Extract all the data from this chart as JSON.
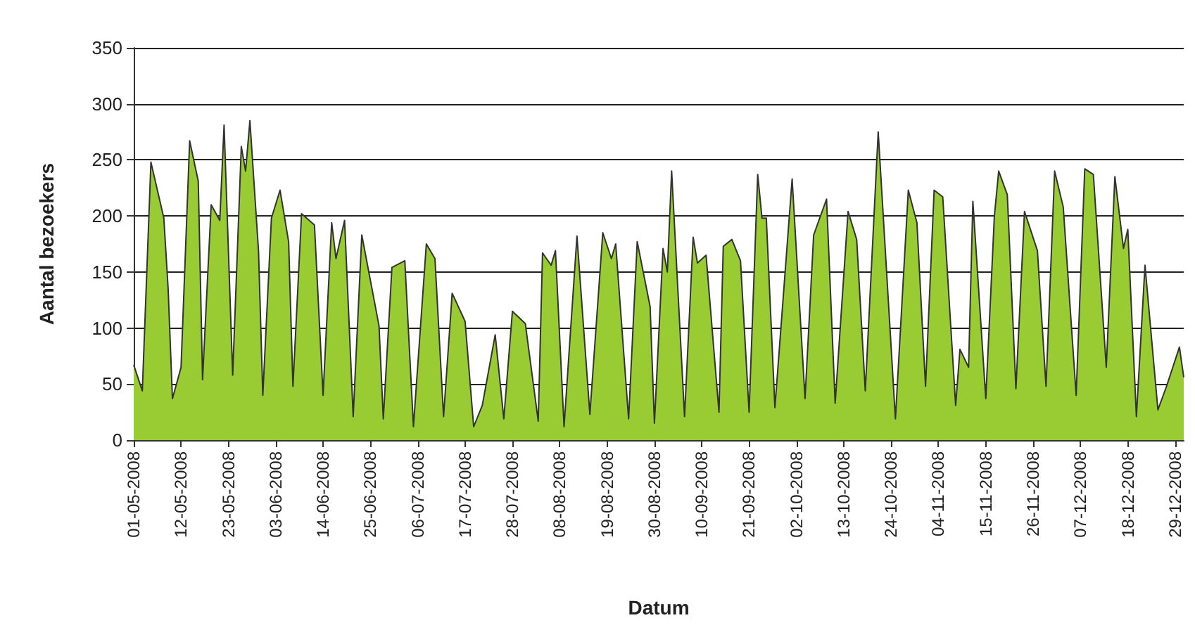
{
  "chart_data": {
    "type": "area",
    "xlabel": "Datum",
    "ylabel": "Aantal bezoekers",
    "ylim": [
      0,
      350
    ],
    "yticks": [
      0,
      50,
      100,
      150,
      200,
      250,
      300,
      350
    ],
    "grid": "y",
    "marker": "none",
    "xlim": [
      "2008-05-01",
      "2008-12-31"
    ],
    "xticks": [
      {
        "value": "2008-05-01",
        "label": "01-05-2008"
      },
      {
        "value": "2008-05-12",
        "label": "12-05-2008"
      },
      {
        "value": "2008-05-23",
        "label": "23-05-2008"
      },
      {
        "value": "2008-06-03",
        "label": "03-06-2008"
      },
      {
        "value": "2008-06-14",
        "label": "14-06-2008"
      },
      {
        "value": "2008-06-25",
        "label": "25-06-2008"
      },
      {
        "value": "2008-07-06",
        "label": "06-07-2008"
      },
      {
        "value": "2008-07-17",
        "label": "17-07-2008"
      },
      {
        "value": "2008-07-28",
        "label": "28-07-2008"
      },
      {
        "value": "2008-08-08",
        "label": "08-08-2008"
      },
      {
        "value": "2008-08-19",
        "label": "19-08-2008"
      },
      {
        "value": "2008-08-30",
        "label": "30-08-2008"
      },
      {
        "value": "2008-09-10",
        "label": "10-09-2008"
      },
      {
        "value": "2008-09-21",
        "label": "21-09-2008"
      },
      {
        "value": "2008-10-02",
        "label": "02-10-2008"
      },
      {
        "value": "2008-10-13",
        "label": "13-10-2008"
      },
      {
        "value": "2008-10-24",
        "label": "24-10-2008"
      },
      {
        "value": "2008-11-04",
        "label": "04-11-2008"
      },
      {
        "value": "2008-11-15",
        "label": "15-11-2008"
      },
      {
        "value": "2008-11-26",
        "label": "26-11-2008"
      },
      {
        "value": "2008-12-07",
        "label": "07-12-2008"
      },
      {
        "value": "2008-12-18",
        "label": "18-12-2008"
      },
      {
        "value": "2008-12-29",
        "label": "29-12-2008"
      }
    ],
    "x": [
      "2008-05-01",
      "2008-05-03",
      "2008-05-05",
      "2008-05-08",
      "2008-05-09",
      "2008-05-10",
      "2008-05-12",
      "2008-05-14",
      "2008-05-16",
      "2008-05-17",
      "2008-05-19",
      "2008-05-21",
      "2008-05-22",
      "2008-05-24",
      "2008-05-26",
      "2008-05-27",
      "2008-05-28",
      "2008-05-30",
      "2008-05-31",
      "2008-06-02",
      "2008-06-04",
      "2008-06-06",
      "2008-06-07",
      "2008-06-09",
      "2008-06-12",
      "2008-06-14",
      "2008-06-16",
      "2008-06-17",
      "2008-06-19",
      "2008-06-21",
      "2008-06-23",
      "2008-06-27",
      "2008-06-28",
      "2008-06-30",
      "2008-07-03",
      "2008-07-05",
      "2008-07-08",
      "2008-07-10",
      "2008-07-12",
      "2008-07-14",
      "2008-07-17",
      "2008-07-19",
      "2008-07-21",
      "2008-07-24",
      "2008-07-26",
      "2008-07-28",
      "2008-07-31",
      "2008-08-03",
      "2008-08-04",
      "2008-08-06",
      "2008-08-07",
      "2008-08-09",
      "2008-08-12",
      "2008-08-15",
      "2008-08-18",
      "2008-08-20",
      "2008-08-21",
      "2008-08-24",
      "2008-08-26",
      "2008-08-29",
      "2008-08-30",
      "2008-09-01",
      "2008-09-02",
      "2008-09-03",
      "2008-09-06",
      "2008-09-08",
      "2008-09-09",
      "2008-09-11",
      "2008-09-14",
      "2008-09-15",
      "2008-09-17",
      "2008-09-19",
      "2008-09-21",
      "2008-09-23",
      "2008-09-24",
      "2008-09-25",
      "2008-09-27",
      "2008-10-01",
      "2008-10-04",
      "2008-10-06",
      "2008-10-09",
      "2008-10-11",
      "2008-10-14",
      "2008-10-16",
      "2008-10-18",
      "2008-10-21",
      "2008-10-25",
      "2008-10-28",
      "2008-10-30",
      "2008-11-01",
      "2008-11-03",
      "2008-11-05",
      "2008-11-08",
      "2008-11-09",
      "2008-11-11",
      "2008-11-12",
      "2008-11-15",
      "2008-11-17",
      "2008-11-18",
      "2008-11-20",
      "2008-11-22",
      "2008-11-24",
      "2008-11-27",
      "2008-11-29",
      "2008-12-01",
      "2008-12-03",
      "2008-12-06",
      "2008-12-08",
      "2008-12-10",
      "2008-12-13",
      "2008-12-15",
      "2008-12-17",
      "2008-12-18",
      "2008-12-20",
      "2008-12-22",
      "2008-12-25",
      "2008-12-27",
      "2008-12-30",
      "2008-12-31"
    ],
    "series": [
      {
        "color": "#99cc33",
        "values": [
          67,
          44,
          248,
          198,
          135,
          37,
          65,
          267,
          231,
          54,
          210,
          196,
          281,
          58,
          262,
          240,
          285,
          169,
          40,
          198,
          223,
          177,
          48,
          202,
          192,
          40,
          194,
          162,
          196,
          21,
          183,
          102,
          19,
          154,
          160,
          12,
          175,
          162,
          21,
          131,
          106,
          12,
          31,
          94,
          19,
          115,
          104,
          17,
          167,
          156,
          169,
          12,
          182,
          23,
          185,
          162,
          175,
          19,
          177,
          119,
          15,
          171,
          150,
          240,
          21,
          181,
          158,
          165,
          25,
          173,
          179,
          160,
          25,
          237,
          198,
          198,
          29,
          233,
          37,
          183,
          215,
          33,
          204,
          179,
          44,
          275,
          19,
          223,
          194,
          48,
          223,
          217,
          31,
          81,
          65,
          213,
          37,
          200,
          240,
          219,
          46,
          204,
          169,
          48,
          240,
          208,
          40,
          242,
          237,
          65,
          235,
          171,
          188,
          21,
          156,
          27,
          48,
          83,
          56
        ]
      }
    ]
  }
}
